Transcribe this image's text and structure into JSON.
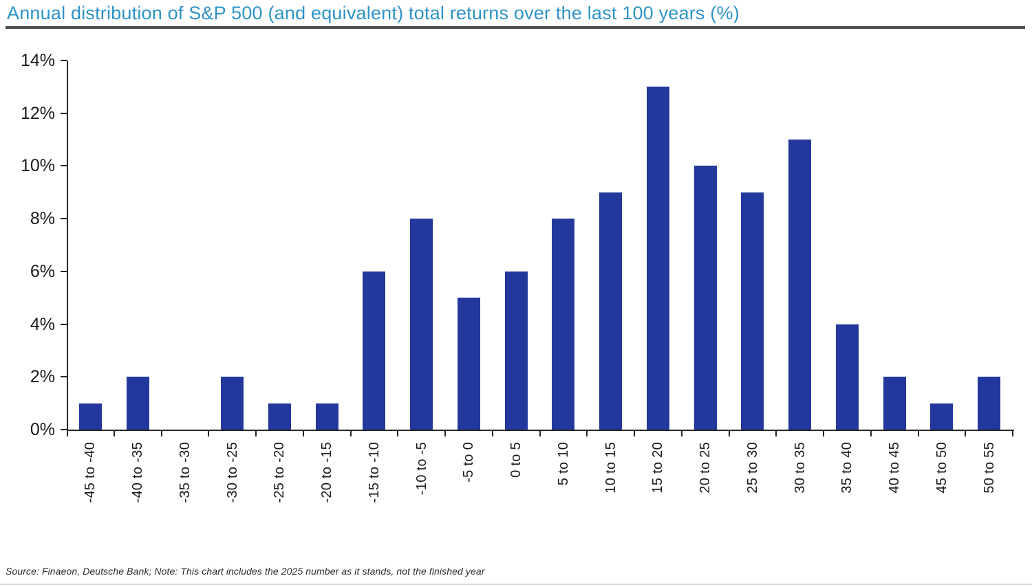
{
  "source_note": "Source: Finaeon, Deutsche Bank; Note: This chart includes the 2025 number as it stands, not the finished year",
  "colors": {
    "bar": "#23389d",
    "title": "#2e93c7",
    "axis": "#262626",
    "tick_label": "#1a1a1a",
    "title_rule": "#4f4f4f",
    "bottom_rule": "#d9d9d9"
  },
  "chart_data": {
    "type": "bar",
    "title": "Annual distribution of S&P 500 (and equivalent) total returns over the last 100 years (%)",
    "categories": [
      "-45 to -40",
      "-40 to -35",
      "-35 to -30",
      "-30 to -25",
      "-25 to -20",
      "-20 to -15",
      "-15 to -10",
      "-10 to -5",
      "-5 to 0",
      "0 to 5",
      "5 to 10",
      "10 to 15",
      "15 to 20",
      "20 to 25",
      "25 to 30",
      "30 to 35",
      "35 to 40",
      "40 to 45",
      "45 to 50",
      "50 to 55"
    ],
    "values": [
      1,
      2,
      0,
      2,
      1,
      1,
      6,
      8,
      5,
      6,
      8,
      9,
      13,
      10,
      9,
      11,
      4,
      2,
      1,
      2
    ],
    "xlabel": "",
    "ylabel": "",
    "ylim": [
      0,
      14
    ],
    "ytick_step": 2,
    "ytick_suffix": "%",
    "grid": false,
    "legend_position": "none"
  }
}
